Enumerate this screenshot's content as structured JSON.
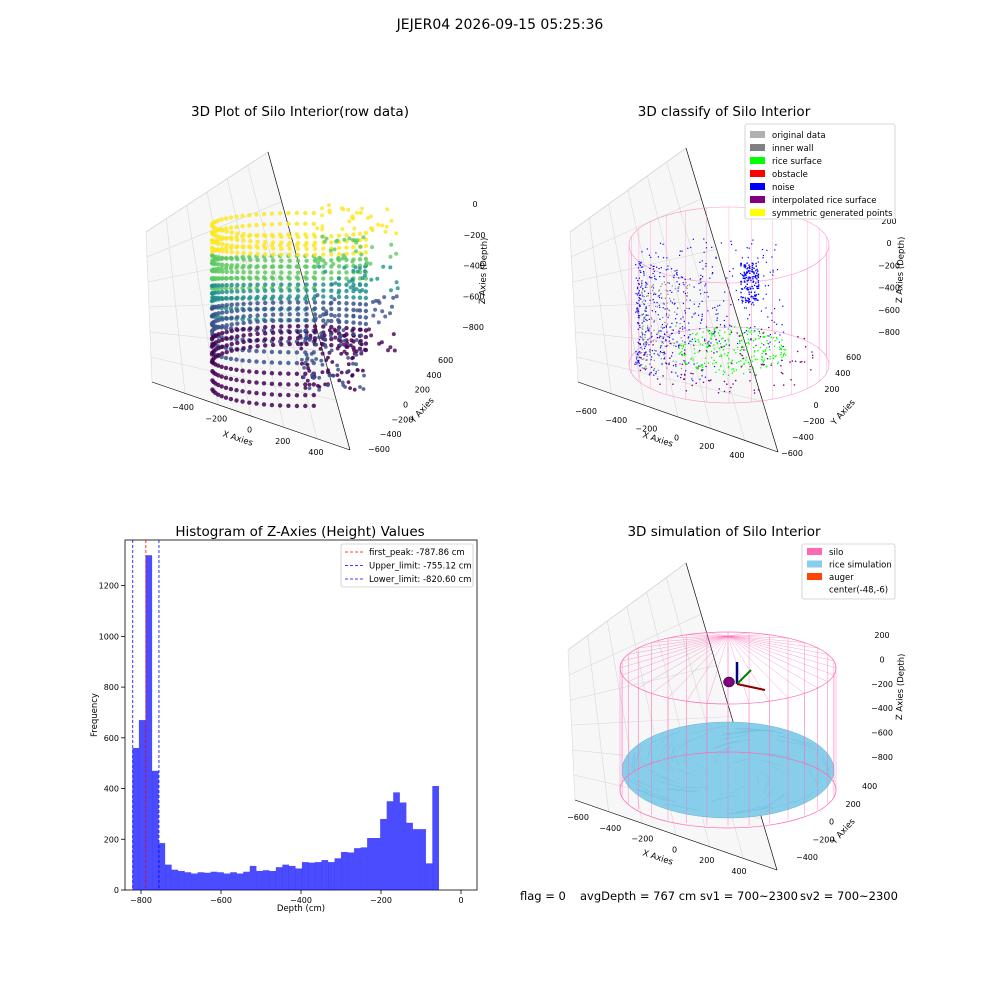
{
  "suptitle": "JEJER04 2026-09-15 05:25:36",
  "footer": {
    "flag": "flag = 0",
    "avg_depth": "avgDepth = 767 cm",
    "sv1": "sv1 = 700~2300",
    "sv2": "sv2 = 700~2300"
  },
  "colors": {
    "viridis": [
      "#440154",
      "#3b528b",
      "#21918c",
      "#5ec962",
      "#fde725"
    ],
    "silo": "#ff69b4",
    "rice": "#87ceeb",
    "hist_bar": "#0000ff",
    "pane": "#f2f2f2",
    "grid": "#d9d9d9"
  },
  "chart_data": [
    {
      "type": "scatter3d",
      "title": "3D Plot of Silo Interior(row data)",
      "xlabel": "X Axies",
      "ylabel": "Y Axies",
      "zlabel": "Z Axies (Depth)",
      "x_ticks": [
        "−400",
        "−200",
        "0",
        "200",
        "400"
      ],
      "y_ticks": [
        "600",
        "400",
        "200",
        "0",
        "−200",
        "−400",
        "−600"
      ],
      "z_ticks": [
        "0",
        "−200",
        "−400",
        "−600",
        "−800"
      ],
      "colormap": "viridis"
    },
    {
      "type": "scatter3d",
      "title": "3D classify of Silo Interior",
      "xlabel": "X Axies",
      "ylabel": "Y Axies",
      "zlabel": "Z Axies (Depth)",
      "x_ticks": [
        "−600",
        "−400",
        "−200",
        "0",
        "200",
        "400"
      ],
      "y_ticks": [
        "600",
        "400",
        "200",
        "0",
        "−200",
        "−400",
        "−600"
      ],
      "z_ticks": [
        "200",
        "0",
        "−200",
        "−400",
        "−600",
        "−800"
      ],
      "legend": [
        {
          "label": "original data",
          "color": "#b0b0b0"
        },
        {
          "label": "inner wall",
          "color": "#808080"
        },
        {
          "label": "rice surface",
          "color": "#00ff00"
        },
        {
          "label": "obstacle",
          "color": "#ff0000"
        },
        {
          "label": "noise",
          "color": "#0000ff"
        },
        {
          "label": "interpolated rice surface",
          "color": "#800080"
        },
        {
          "label": "symmetric generated points",
          "color": "#ffff00"
        }
      ],
      "legend_position": "top-right"
    },
    {
      "type": "bar",
      "title": "Histogram of Z-Axies (Height) Values",
      "xlabel": "Depth (cm)",
      "ylabel": "Frequency",
      "xlim": [
        -840,
        40
      ],
      "ylim": [
        0,
        1380
      ],
      "x_ticks": [
        -800,
        -600,
        -400,
        -200,
        0
      ],
      "x_tick_labels": [
        "−800",
        "−600",
        "−400",
        "−200",
        "0"
      ],
      "y_ticks": [
        0,
        200,
        400,
        600,
        800,
        1000,
        1200
      ],
      "bin_width": 16.3,
      "bin_start": -821.5,
      "values": [
        560,
        670,
        1320,
        470,
        185,
        100,
        80,
        75,
        70,
        65,
        70,
        68,
        72,
        70,
        65,
        70,
        65,
        72,
        95,
        75,
        78,
        75,
        90,
        100,
        95,
        85,
        110,
        108,
        110,
        118,
        110,
        125,
        150,
        148,
        165,
        168,
        205,
        205,
        280,
        350,
        385,
        345,
        265,
        240,
        240,
        105,
        410
      ],
      "vlines": [
        {
          "label": "first_peak: -787.86 cm",
          "x": -787.86,
          "color": "#ff0000"
        },
        {
          "label": "Upper_limit: -755.12 cm",
          "x": -755.12,
          "color": "#0000ff"
        },
        {
          "label": "Lower_limit: -820.60 cm",
          "x": -820.6,
          "color": "#0000ff"
        }
      ],
      "legend_position": "top-right"
    },
    {
      "type": "surface3d",
      "title": "3D simulation of Silo Interior",
      "xlabel": "X Axies",
      "ylabel": "Y Axies",
      "zlabel": "Z Axies (Depth)",
      "x_ticks": [
        "−600",
        "−400",
        "−200",
        "0",
        "200",
        "400"
      ],
      "y_ticks": [
        "400",
        "200",
        "0",
        "−200",
        "−400"
      ],
      "z_ticks": [
        "200",
        "0",
        "−200",
        "−400",
        "−600",
        "−800"
      ],
      "legend": [
        {
          "label": "silo",
          "color": "#ff69b4"
        },
        {
          "label": "rice simulation",
          "color": "#87ceeb"
        },
        {
          "label": "auger",
          "color": "#ff4500"
        },
        {
          "label": "center(-48,-6)",
          "color": ""
        }
      ],
      "legend_position": "top-right"
    }
  ]
}
